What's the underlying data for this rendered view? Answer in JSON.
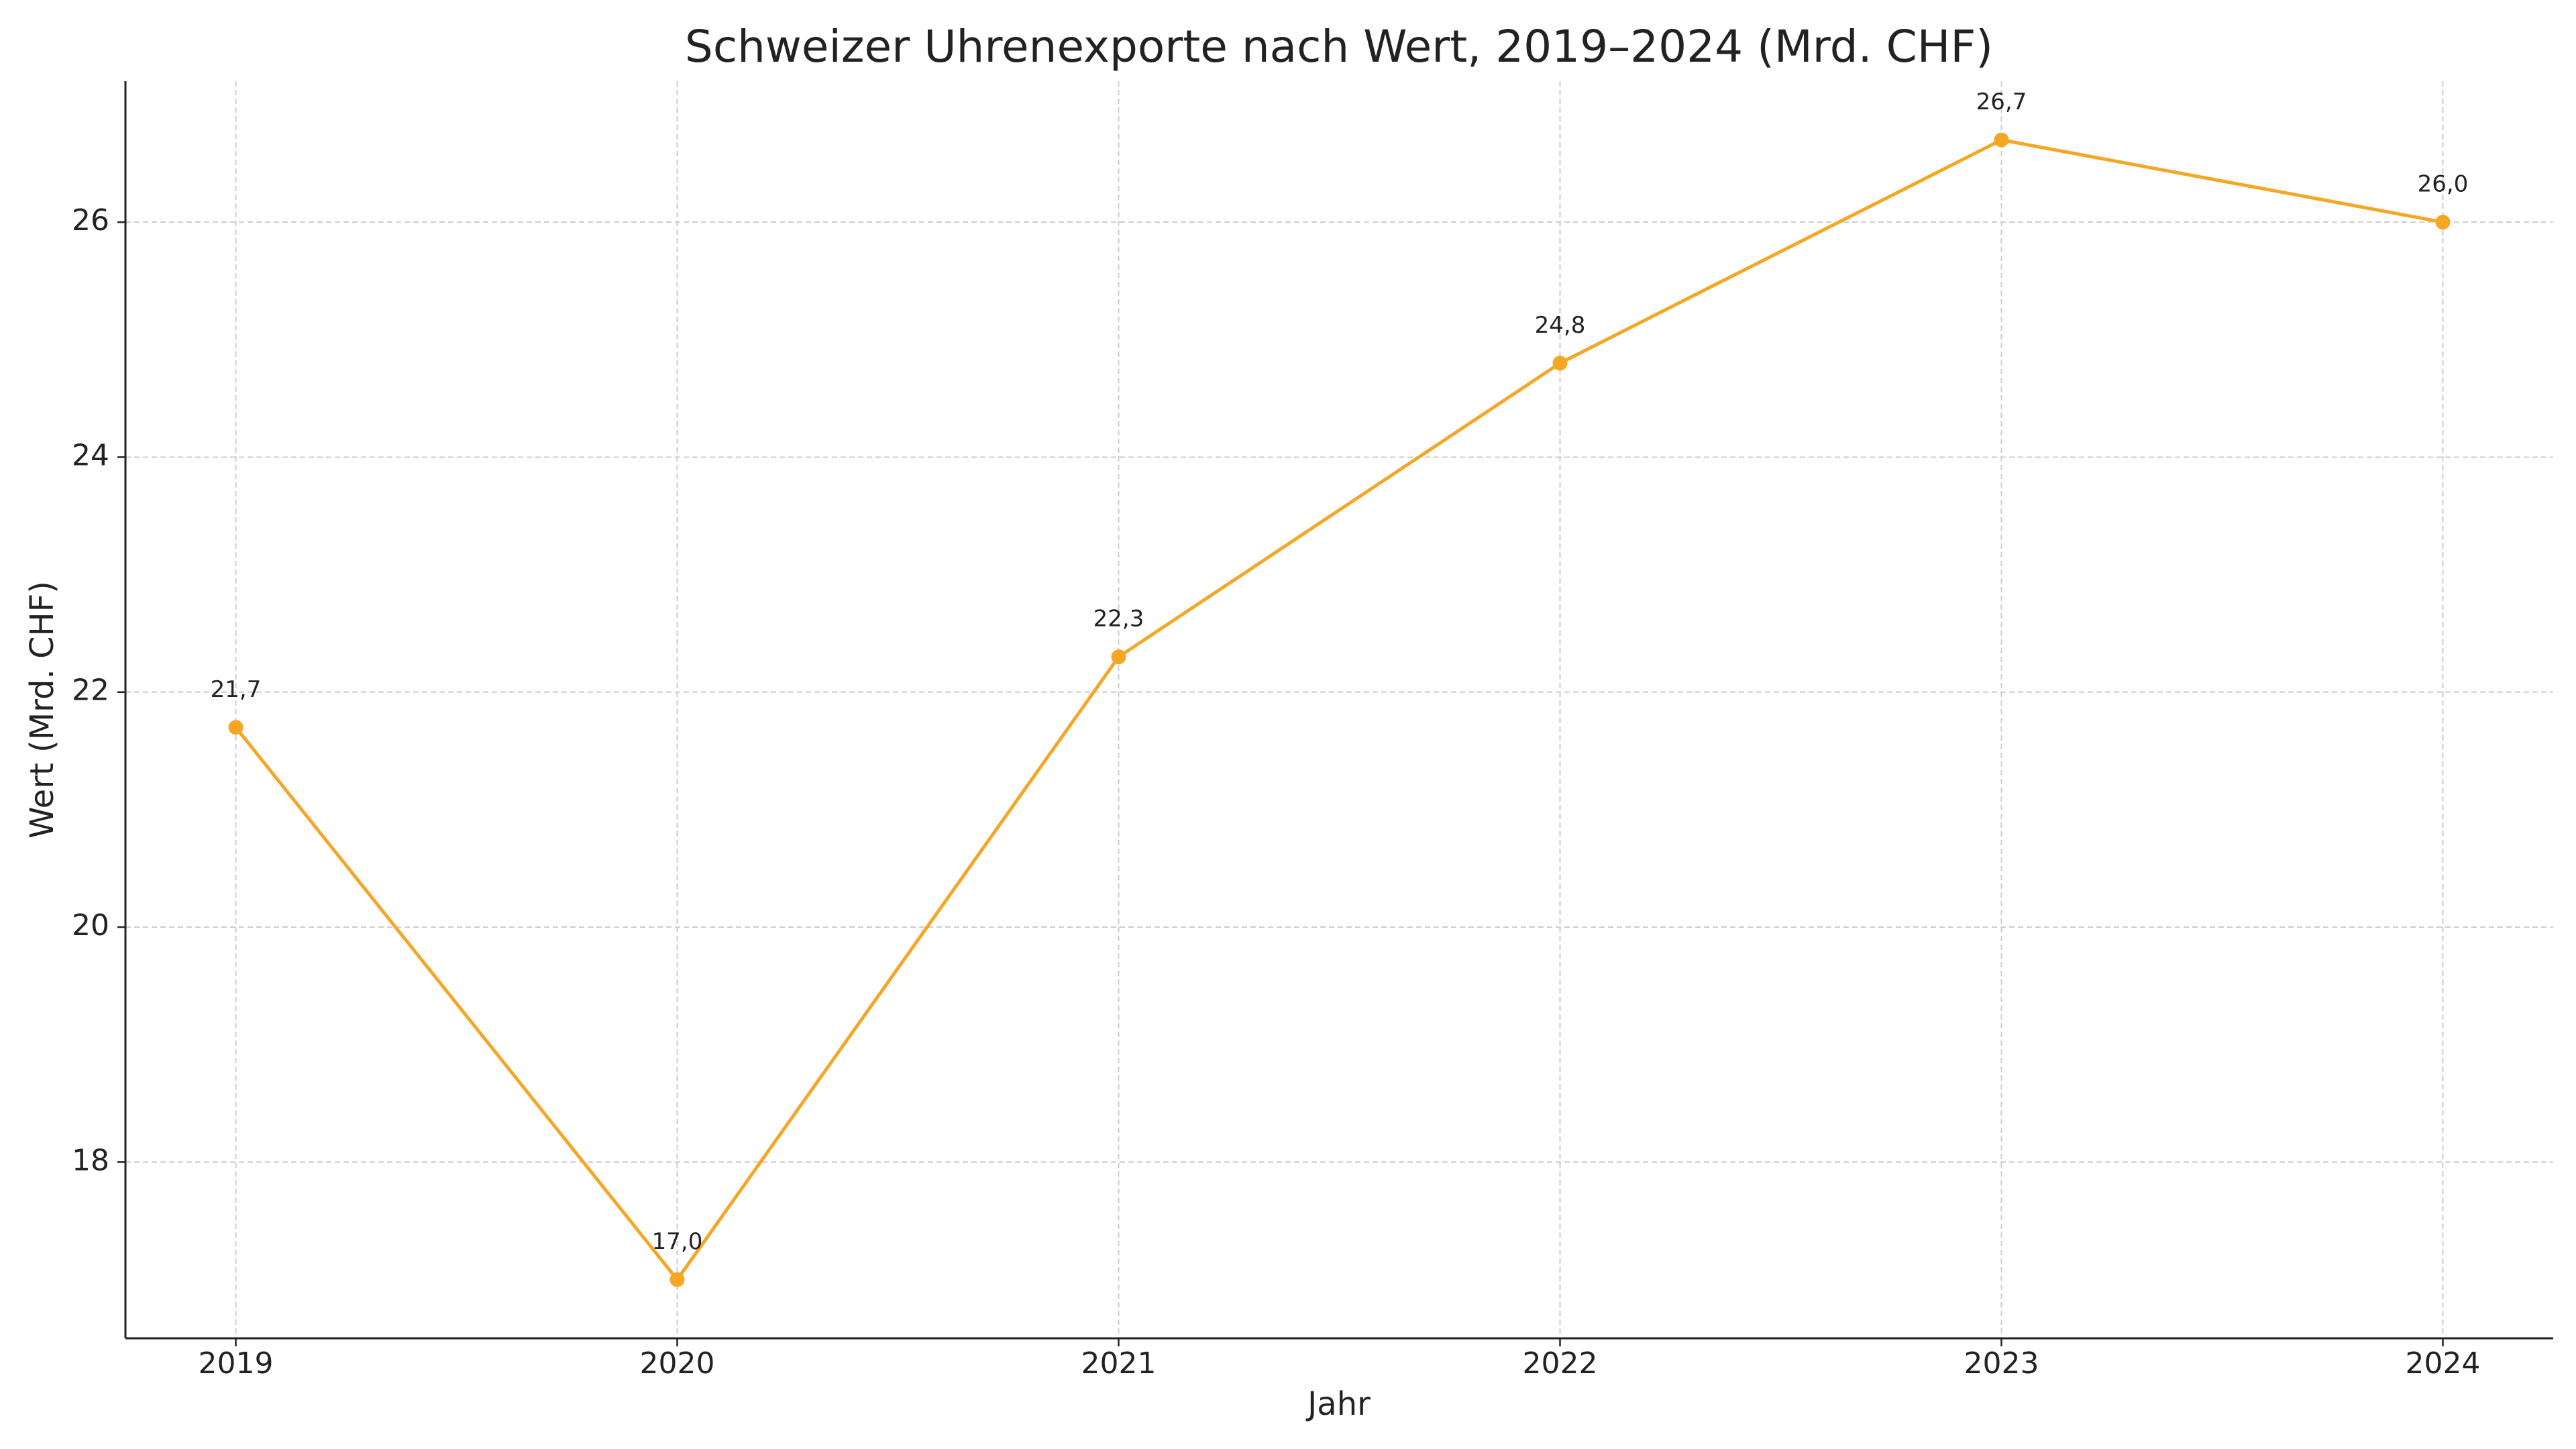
{
  "chart_data": {
    "type": "line",
    "title": "Schweizer Uhrenexporte nach Wert, 2019–2024 (Mrd. CHF)",
    "x_label": "Jahr",
    "y_label": "Wert (Mrd. CHF)",
    "x": [
      2019,
      2020,
      2021,
      2022,
      2023,
      2024
    ],
    "series": [
      {
        "name": "Wert",
        "color": "#f5a623",
        "values": [
          21.7,
          17.0,
          22.3,
          24.8,
          26.7,
          26.0
        ],
        "value_labels": [
          "21,7",
          "17,0",
          "22,3",
          "24,8",
          "26,7",
          "26,0"
        ]
      }
    ],
    "xlim": [
      2018.75,
      2024.25
    ],
    "xticks": [
      2019,
      2020,
      2021,
      2022,
      2023,
      2024
    ],
    "ylim": [
      16.5,
      27.2
    ],
    "yticks": [
      18,
      20,
      22,
      24,
      26
    ],
    "grid": true
  }
}
